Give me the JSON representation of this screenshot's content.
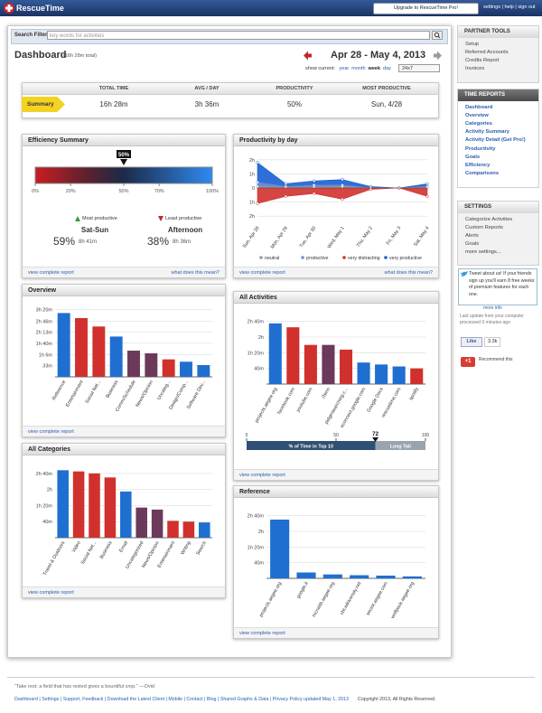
{
  "topbar": {
    "logo": "RescueTime",
    "upgrade": "Upgrade to RescueTime Pro!",
    "links": "settings | help | sign out"
  },
  "search": {
    "label": "Search Filter",
    "placeholder": "key words for activities"
  },
  "header": {
    "title": "Dashboard",
    "total": "(16h 28m total)",
    "date_range": "Apr 28 - May 4, 2013",
    "show_current": "show current:",
    "periods": [
      "year",
      "month",
      "week",
      "day"
    ],
    "select": "24x7"
  },
  "summary": {
    "tag": "Summary",
    "columns": [
      "TOTAL TIME",
      "AVG / DAY",
      "PRODUCTIVITY",
      "MOST PRODUCTIVE"
    ],
    "values": [
      "16h 28m",
      "3h 36m",
      "50%",
      "Sun, 4/28"
    ]
  },
  "efficiency": {
    "title": "Efficiency Summary",
    "marker_value": 50,
    "marker_label": "50%",
    "scale": [
      {
        "value": 0,
        "label": "0%"
      },
      {
        "value": 20,
        "label": "20%"
      },
      {
        "value": 50,
        "label": "50%"
      },
      {
        "value": 70,
        "label": "70%"
      },
      {
        "value": 100,
        "label": "100%"
      }
    ],
    "most": {
      "label": "Most productive",
      "name": "Sat-Sun",
      "percent": "59%",
      "time": "8h 41m"
    },
    "least": {
      "label": "Least productive",
      "name": "Afternoon",
      "percent": "38%",
      "time": "8h 36m"
    },
    "links": [
      "view complete report",
      "what does this mean?"
    ]
  },
  "chart_data": [
    {
      "type": "bar",
      "title": "Overview",
      "footer_link": "view complete report",
      "categories": [
        "Reference",
        "Entertainment",
        "Social Net...",
        "Business",
        "Comm/Schedule",
        "News/Opinion",
        "Uncateg...",
        "Design/Comp...",
        "Software Dev..."
      ],
      "values": [
        190,
        175,
        150,
        120,
        78,
        70,
        52,
        45,
        35
      ],
      "colors": [
        "#1f6fd0",
        "#d0312d",
        "#d0312d",
        "#1f6fd0",
        "#6b3a5a",
        "#6b3a5a",
        "#d0312d",
        "#1f6fd0",
        "#1f6fd0"
      ],
      "ylim": [
        0,
        210
      ],
      "yticks": [
        {
          "value": 33,
          "label": "33m"
        },
        {
          "value": 66,
          "label": "1h 6m"
        },
        {
          "value": 100,
          "label": "1h 40m"
        },
        {
          "value": 133,
          "label": "2h 13m"
        },
        {
          "value": 166,
          "label": "2h 46m"
        },
        {
          "value": 200,
          "label": "3h 20m"
        }
      ]
    },
    {
      "type": "bar",
      "title": "All Categories",
      "footer_link": "view complete report",
      "categories": [
        "Travel & Outdoors",
        "Video",
        "Social Net...",
        "Business",
        "Email",
        "Uncategorized",
        "News/Opinion",
        "Entertainment",
        "Writing",
        "Search"
      ],
      "values": [
        168,
        165,
        160,
        150,
        115,
        75,
        70,
        42,
        40,
        38
      ],
      "colors": [
        "#1f6fd0",
        "#d0312d",
        "#d0312d",
        "#d0312d",
        "#1f6fd0",
        "#6b3a5a",
        "#6b3a5a",
        "#d0312d",
        "#d0312d",
        "#1f6fd0"
      ],
      "ylim": [
        0,
        180
      ],
      "yticks": [
        {
          "value": 40,
          "label": "40m"
        },
        {
          "value": 80,
          "label": "1h 20m"
        },
        {
          "value": 120,
          "label": "2h"
        },
        {
          "value": 160,
          "label": "2h 40m"
        }
      ]
    },
    {
      "type": "area",
      "title": "Productivity by day",
      "footer_link": "view complete report",
      "footer_link_2": "what does this mean?",
      "categories": [
        "Sun, Apr 28",
        "Mon, Apr 29",
        "Tue, Apr 30",
        "Wed, May 1",
        "Thu, May 2",
        "Fri, May 3",
        "Sat, May 4"
      ],
      "series": [
        {
          "name": "neutral",
          "color": "#999999",
          "values": [
            0.1,
            0.05,
            0.05,
            0.1,
            0,
            0,
            0.05
          ]
        },
        {
          "name": "productive",
          "color": "#6f8fd8",
          "values": [
            0.4,
            0.1,
            0.2,
            0.2,
            0,
            0,
            0.1
          ]
        },
        {
          "name": "very distracting",
          "color": "#d0312d",
          "values": [
            -1.1,
            -0.6,
            -0.4,
            -0.8,
            -0.1,
            0,
            -0.6
          ]
        },
        {
          "name": "very productive",
          "color": "#1a5fd1",
          "values": [
            1.8,
            0.3,
            0.5,
            0.6,
            0.1,
            0,
            0.3
          ]
        }
      ],
      "ylim": [
        -2.5,
        2.5
      ],
      "yticks": [
        {
          "value": -2,
          "label": "2h"
        },
        {
          "value": -1,
          "label": "1h"
        },
        0,
        {
          "value": 1,
          "label": "1h"
        },
        {
          "value": 2,
          "label": "2h"
        }
      ]
    },
    {
      "type": "bar",
      "title": "All Activities",
      "footer_link": "view complete report",
      "categories": [
        "projects.aegee.org",
        "facebook.com",
        "youtube.com",
        "iTerm",
        "pidginsearching.c...",
        "econnect.google.com",
        "Google Docs",
        "rescuetime.com",
        "spotify"
      ],
      "values": [
        155,
        145,
        100,
        100,
        88,
        55,
        50,
        45,
        40
      ],
      "colors": [
        "#1f6fd0",
        "#d0312d",
        "#d0312d",
        "#6b3a5a",
        "#d0312d",
        "#1f6fd0",
        "#1f6fd0",
        "#1f6fd0",
        "#d0312d"
      ],
      "ylim": [
        0,
        180
      ],
      "yticks": [
        {
          "value": 40,
          "label": "40m"
        },
        {
          "value": 80,
          "label": "1h 20m"
        },
        {
          "value": 120,
          "label": "2h"
        },
        {
          "value": 160,
          "label": "2h 40m"
        }
      ]
    },
    {
      "type": "bar",
      "title": "Reference",
      "footer_link": "view complete report",
      "categories": [
        "projects.aegee.org",
        "google.it",
        "mcnabb.aegee.org",
        "cbt.wikiversity.net",
        "sector.aegee.com",
        "wolfpack.aegee.org"
      ],
      "values": [
        150,
        15,
        10,
        8,
        7,
        5
      ],
      "colors": [
        "#1f6fd0",
        "#1f6fd0",
        "#1f6fd0",
        "#1f6fd0",
        "#1f6fd0",
        "#1f6fd0"
      ],
      "ylim": [
        0,
        180
      ],
      "yticks": [
        {
          "value": 40,
          "label": "40m"
        },
        {
          "value": 80,
          "label": "1h 20m"
        },
        {
          "value": 120,
          "label": "2h"
        },
        {
          "value": 160,
          "label": "2h 40m"
        }
      ]
    }
  ],
  "top10": {
    "label": "% of Time in Top 10",
    "value": 72,
    "tail": "Long Tail",
    "ticks": [
      0,
      50,
      100
    ]
  },
  "sidebar": {
    "partner": {
      "title": "PARTNER TOOLS",
      "items": [
        "Setup",
        "Referred Accounts",
        "Credits Report",
        "Invoices"
      ]
    },
    "reports": {
      "title": "TIME REPORTS",
      "items": [
        "Dashboard",
        "Overview",
        "Categories",
        "Activity Summary",
        "Activity Detail (Get Pro!)",
        "Productivity",
        "Goals",
        "Efficiency",
        "Comparisons"
      ]
    },
    "settings": {
      "title": "SETTINGS",
      "items": [
        "Categorize Activities",
        "Custom Reports",
        "Alerts",
        "Goals",
        "more settings..."
      ]
    },
    "tweet": "Tweet about us! If your friends sign up you'll earn 8 free weeks of premium features for each one.",
    "more_info": "more info",
    "last_update": "Last update from your computer processed 0 minutes ago",
    "like": "Like",
    "like_count": "3.3k",
    "plus": "+1",
    "recommend": "Recommend this"
  },
  "footer": {
    "quote": "“Take rest; a field that has rested gives a bountiful crop.” —Ovid",
    "links": "Dashboard | Settings | Support, Feedback | Download the Latest Client | Mobile | Contact | Blog | Shared Graphs & Data | Privacy Policy updated May 1, 2013",
    "copyright": "Copyright 2013, All Rights Reserved."
  }
}
